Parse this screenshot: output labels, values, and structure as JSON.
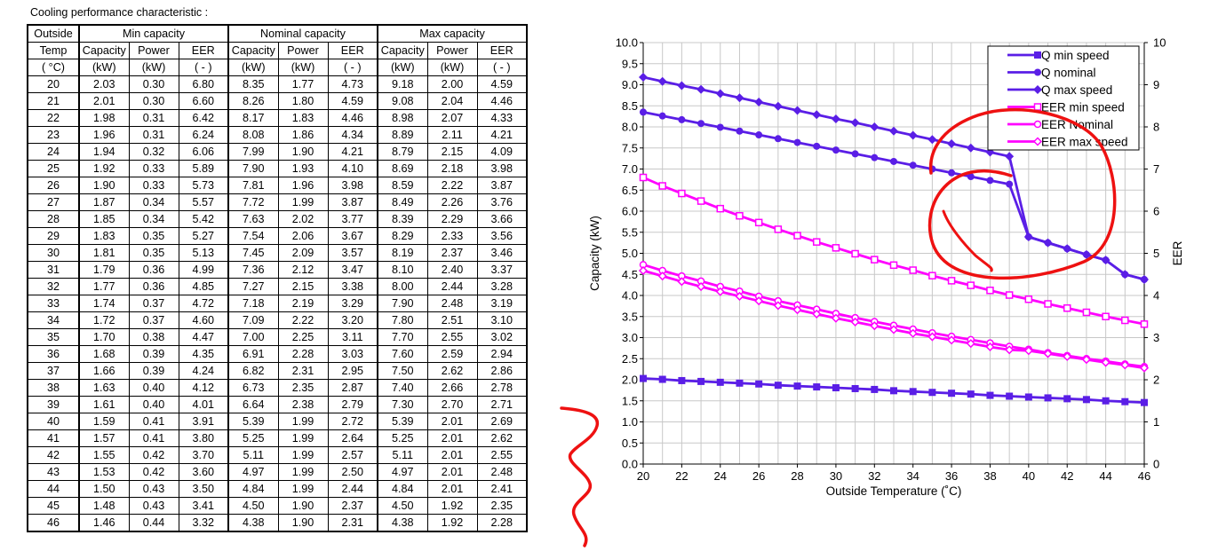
{
  "heading": "Cooling performance  characteristic :",
  "table": {
    "header_top": {
      "outside": "Outside",
      "groups": [
        "Min capacity",
        "Nominal capacity",
        "Max capacity"
      ]
    },
    "header_mid": {
      "temp": "Temp",
      "cols": [
        "Capacity",
        "Power",
        "EER"
      ]
    },
    "header_units": {
      "temp": "( °C)",
      "cols": [
        "(kW)",
        "(kW)",
        "( - )"
      ]
    },
    "rows": [
      [
        "20",
        "2.03",
        "0.30",
        "6.80",
        "8.35",
        "1.77",
        "4.73",
        "9.18",
        "2.00",
        "4.59"
      ],
      [
        "21",
        "2.01",
        "0.30",
        "6.60",
        "8.26",
        "1.80",
        "4.59",
        "9.08",
        "2.04",
        "4.46"
      ],
      [
        "22",
        "1.98",
        "0.31",
        "6.42",
        "8.17",
        "1.83",
        "4.46",
        "8.98",
        "2.07",
        "4.33"
      ],
      [
        "23",
        "1.96",
        "0.31",
        "6.24",
        "8.08",
        "1.86",
        "4.34",
        "8.89",
        "2.11",
        "4.21"
      ],
      [
        "24",
        "1.94",
        "0.32",
        "6.06",
        "7.99",
        "1.90",
        "4.21",
        "8.79",
        "2.15",
        "4.09"
      ],
      [
        "25",
        "1.92",
        "0.33",
        "5.89",
        "7.90",
        "1.93",
        "4.10",
        "8.69",
        "2.18",
        "3.98"
      ],
      [
        "26",
        "1.90",
        "0.33",
        "5.73",
        "7.81",
        "1.96",
        "3.98",
        "8.59",
        "2.22",
        "3.87"
      ],
      [
        "27",
        "1.87",
        "0.34",
        "5.57",
        "7.72",
        "1.99",
        "3.87",
        "8.49",
        "2.26",
        "3.76"
      ],
      [
        "28",
        "1.85",
        "0.34",
        "5.42",
        "7.63",
        "2.02",
        "3.77",
        "8.39",
        "2.29",
        "3.66"
      ],
      [
        "29",
        "1.83",
        "0.35",
        "5.27",
        "7.54",
        "2.06",
        "3.67",
        "8.29",
        "2.33",
        "3.56"
      ],
      [
        "30",
        "1.81",
        "0.35",
        "5.13",
        "7.45",
        "2.09",
        "3.57",
        "8.19",
        "2.37",
        "3.46"
      ],
      [
        "31",
        "1.79",
        "0.36",
        "4.99",
        "7.36",
        "2.12",
        "3.47",
        "8.10",
        "2.40",
        "3.37"
      ],
      [
        "32",
        "1.77",
        "0.36",
        "4.85",
        "7.27",
        "2.15",
        "3.38",
        "8.00",
        "2.44",
        "3.28"
      ],
      [
        "33",
        "1.74",
        "0.37",
        "4.72",
        "7.18",
        "2.19",
        "3.29",
        "7.90",
        "2.48",
        "3.19"
      ],
      [
        "34",
        "1.72",
        "0.37",
        "4.60",
        "7.09",
        "2.22",
        "3.20",
        "7.80",
        "2.51",
        "3.10"
      ],
      [
        "35",
        "1.70",
        "0.38",
        "4.47",
        "7.00",
        "2.25",
        "3.11",
        "7.70",
        "2.55",
        "3.02"
      ],
      [
        "36",
        "1.68",
        "0.39",
        "4.35",
        "6.91",
        "2.28",
        "3.03",
        "7.60",
        "2.59",
        "2.94"
      ],
      [
        "37",
        "1.66",
        "0.39",
        "4.24",
        "6.82",
        "2.31",
        "2.95",
        "7.50",
        "2.62",
        "2.86"
      ],
      [
        "38",
        "1.63",
        "0.40",
        "4.12",
        "6.73",
        "2.35",
        "2.87",
        "7.40",
        "2.66",
        "2.78"
      ],
      [
        "39",
        "1.61",
        "0.40",
        "4.01",
        "6.64",
        "2.38",
        "2.79",
        "7.30",
        "2.70",
        "2.71"
      ],
      [
        "40",
        "1.59",
        "0.41",
        "3.91",
        "5.39",
        "1.99",
        "2.72",
        "5.39",
        "2.01",
        "2.69"
      ],
      [
        "41",
        "1.57",
        "0.41",
        "3.80",
        "5.25",
        "1.99",
        "2.64",
        "5.25",
        "2.01",
        "2.62"
      ],
      [
        "42",
        "1.55",
        "0.42",
        "3.70",
        "5.11",
        "1.99",
        "2.57",
        "5.11",
        "2.01",
        "2.55"
      ],
      [
        "43",
        "1.53",
        "0.42",
        "3.60",
        "4.97",
        "1.99",
        "2.50",
        "4.97",
        "2.01",
        "2.48"
      ],
      [
        "44",
        "1.50",
        "0.43",
        "3.50",
        "4.84",
        "1.99",
        "2.44",
        "4.84",
        "2.01",
        "2.41"
      ],
      [
        "45",
        "1.48",
        "0.43",
        "3.41",
        "4.50",
        "1.90",
        "2.37",
        "4.50",
        "1.92",
        "2.35"
      ],
      [
        "46",
        "1.46",
        "0.44",
        "3.32",
        "4.38",
        "1.90",
        "2.31",
        "4.38",
        "1.92",
        "2.28"
      ]
    ]
  },
  "chart_data": {
    "type": "line",
    "xlabel": "Outside Temperature (˚C)",
    "ylabel": "Capacity (kW)",
    "y2label": "EER",
    "xlim": [
      20,
      46
    ],
    "xticks": [
      20,
      22,
      24,
      26,
      28,
      30,
      32,
      34,
      36,
      38,
      40,
      42,
      44,
      46
    ],
    "ylim": [
      0,
      10
    ],
    "yticks": [
      "0.0",
      "0.5",
      "1.0",
      "1.5",
      "2.0",
      "2.5",
      "3.0",
      "3.5",
      "4.0",
      "4.5",
      "5.0",
      "5.5",
      "6.0",
      "6.5",
      "7.0",
      "7.5",
      "8.0",
      "8.5",
      "9.0",
      "9.5",
      "10.0"
    ],
    "y2lim": [
      0,
      10
    ],
    "y2ticks": [
      "0",
      "1",
      "2",
      "3",
      "4",
      "5",
      "6",
      "7",
      "8",
      "9",
      "10"
    ],
    "grid": true,
    "legend_position": "top-right",
    "x": [
      20,
      21,
      22,
      23,
      24,
      25,
      26,
      27,
      28,
      29,
      30,
      31,
      32,
      33,
      34,
      35,
      36,
      37,
      38,
      39,
      40,
      41,
      42,
      43,
      44,
      45,
      46
    ],
    "series": [
      {
        "name": "Q min speed",
        "axis": "left",
        "color": "#5a1ee6",
        "marker": "square",
        "values": [
          2.03,
          2.01,
          1.98,
          1.96,
          1.94,
          1.92,
          1.9,
          1.87,
          1.85,
          1.83,
          1.81,
          1.79,
          1.77,
          1.74,
          1.72,
          1.7,
          1.68,
          1.66,
          1.63,
          1.61,
          1.59,
          1.57,
          1.55,
          1.53,
          1.5,
          1.48,
          1.46
        ]
      },
      {
        "name": "Q nominal",
        "axis": "left",
        "color": "#5a1ee6",
        "marker": "circle",
        "values": [
          8.35,
          8.26,
          8.17,
          8.08,
          7.99,
          7.9,
          7.81,
          7.72,
          7.63,
          7.54,
          7.45,
          7.36,
          7.27,
          7.18,
          7.09,
          7.0,
          6.91,
          6.82,
          6.73,
          6.64,
          5.39,
          5.25,
          5.11,
          4.97,
          4.84,
          4.5,
          4.38
        ]
      },
      {
        "name": "Q max speed",
        "axis": "left",
        "color": "#5a1ee6",
        "marker": "diamond",
        "values": [
          9.18,
          9.08,
          8.98,
          8.89,
          8.79,
          8.69,
          8.59,
          8.49,
          8.39,
          8.29,
          8.19,
          8.1,
          8.0,
          7.9,
          7.8,
          7.7,
          7.6,
          7.5,
          7.4,
          7.3,
          5.39,
          5.25,
          5.11,
          4.97,
          4.84,
          4.5,
          4.38
        ]
      },
      {
        "name": "EER min speed",
        "axis": "right",
        "color": "#ff00ff",
        "marker": "square-open",
        "values": [
          6.8,
          6.6,
          6.42,
          6.24,
          6.06,
          5.89,
          5.73,
          5.57,
          5.42,
          5.27,
          5.13,
          4.99,
          4.85,
          4.72,
          4.6,
          4.47,
          4.35,
          4.24,
          4.12,
          4.01,
          3.91,
          3.8,
          3.7,
          3.6,
          3.5,
          3.41,
          3.32
        ]
      },
      {
        "name": "EER Nominal",
        "axis": "right",
        "color": "#ff00ff",
        "marker": "circle-open",
        "values": [
          4.73,
          4.59,
          4.46,
          4.34,
          4.21,
          4.1,
          3.98,
          3.87,
          3.77,
          3.67,
          3.57,
          3.47,
          3.38,
          3.29,
          3.2,
          3.11,
          3.03,
          2.95,
          2.87,
          2.79,
          2.72,
          2.64,
          2.57,
          2.5,
          2.44,
          2.37,
          2.31
        ]
      },
      {
        "name": "EER max speed",
        "axis": "right",
        "color": "#ff00ff",
        "marker": "diamond-open",
        "values": [
          4.59,
          4.46,
          4.33,
          4.21,
          4.09,
          3.98,
          3.87,
          3.76,
          3.66,
          3.56,
          3.46,
          3.37,
          3.28,
          3.19,
          3.1,
          3.02,
          2.94,
          2.86,
          2.78,
          2.71,
          2.69,
          2.62,
          2.55,
          2.48,
          2.41,
          2.35,
          2.28
        ]
      }
    ]
  },
  "colors": {
    "annotation": "#ee1111",
    "grid": "#c8c8c8",
    "q_series": "#5a1ee6",
    "eer_series": "#ff00ff"
  }
}
